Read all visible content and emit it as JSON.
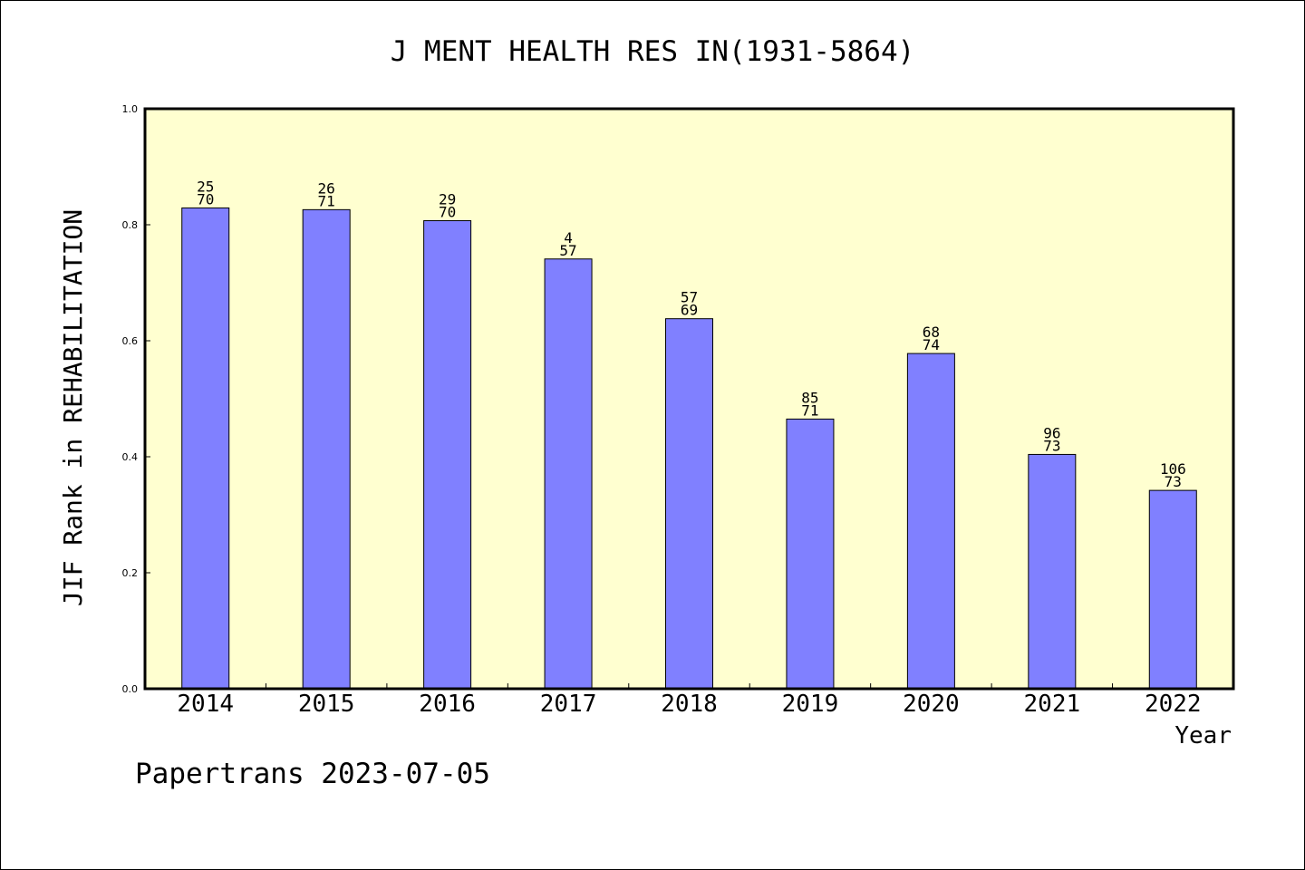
{
  "chart_data": {
    "type": "bar",
    "title": "J MENT HEALTH RES IN(1931-5864)",
    "xlabel": "Year",
    "ylabel": "JIF Rank in REHABILITATION",
    "ylim": [
      0,
      1.0
    ],
    "yticks": [
      "0.0",
      "0.2",
      "0.4",
      "0.6",
      "0.8",
      "1.0"
    ],
    "categories": [
      "2014",
      "2015",
      "2016",
      "2017",
      "2018",
      "2019",
      "2020",
      "2021",
      "2022"
    ],
    "values": [
      0.829,
      0.826,
      0.807,
      0.741,
      0.638,
      0.465,
      0.578,
      0.404,
      0.342
    ],
    "rank": [
      "25",
      "26",
      "29",
      "4",
      "57",
      "85",
      "68",
      "96",
      "106"
    ],
    "total": [
      "70",
      "71",
      "70",
      "57",
      "69",
      "71",
      "74",
      "73",
      "73"
    ],
    "grid": false,
    "colors": {
      "bar": "#8080ff",
      "plot_bg": "#ffffd0",
      "axis": "#000000"
    }
  },
  "footer": "Papertrans 2023-07-05"
}
